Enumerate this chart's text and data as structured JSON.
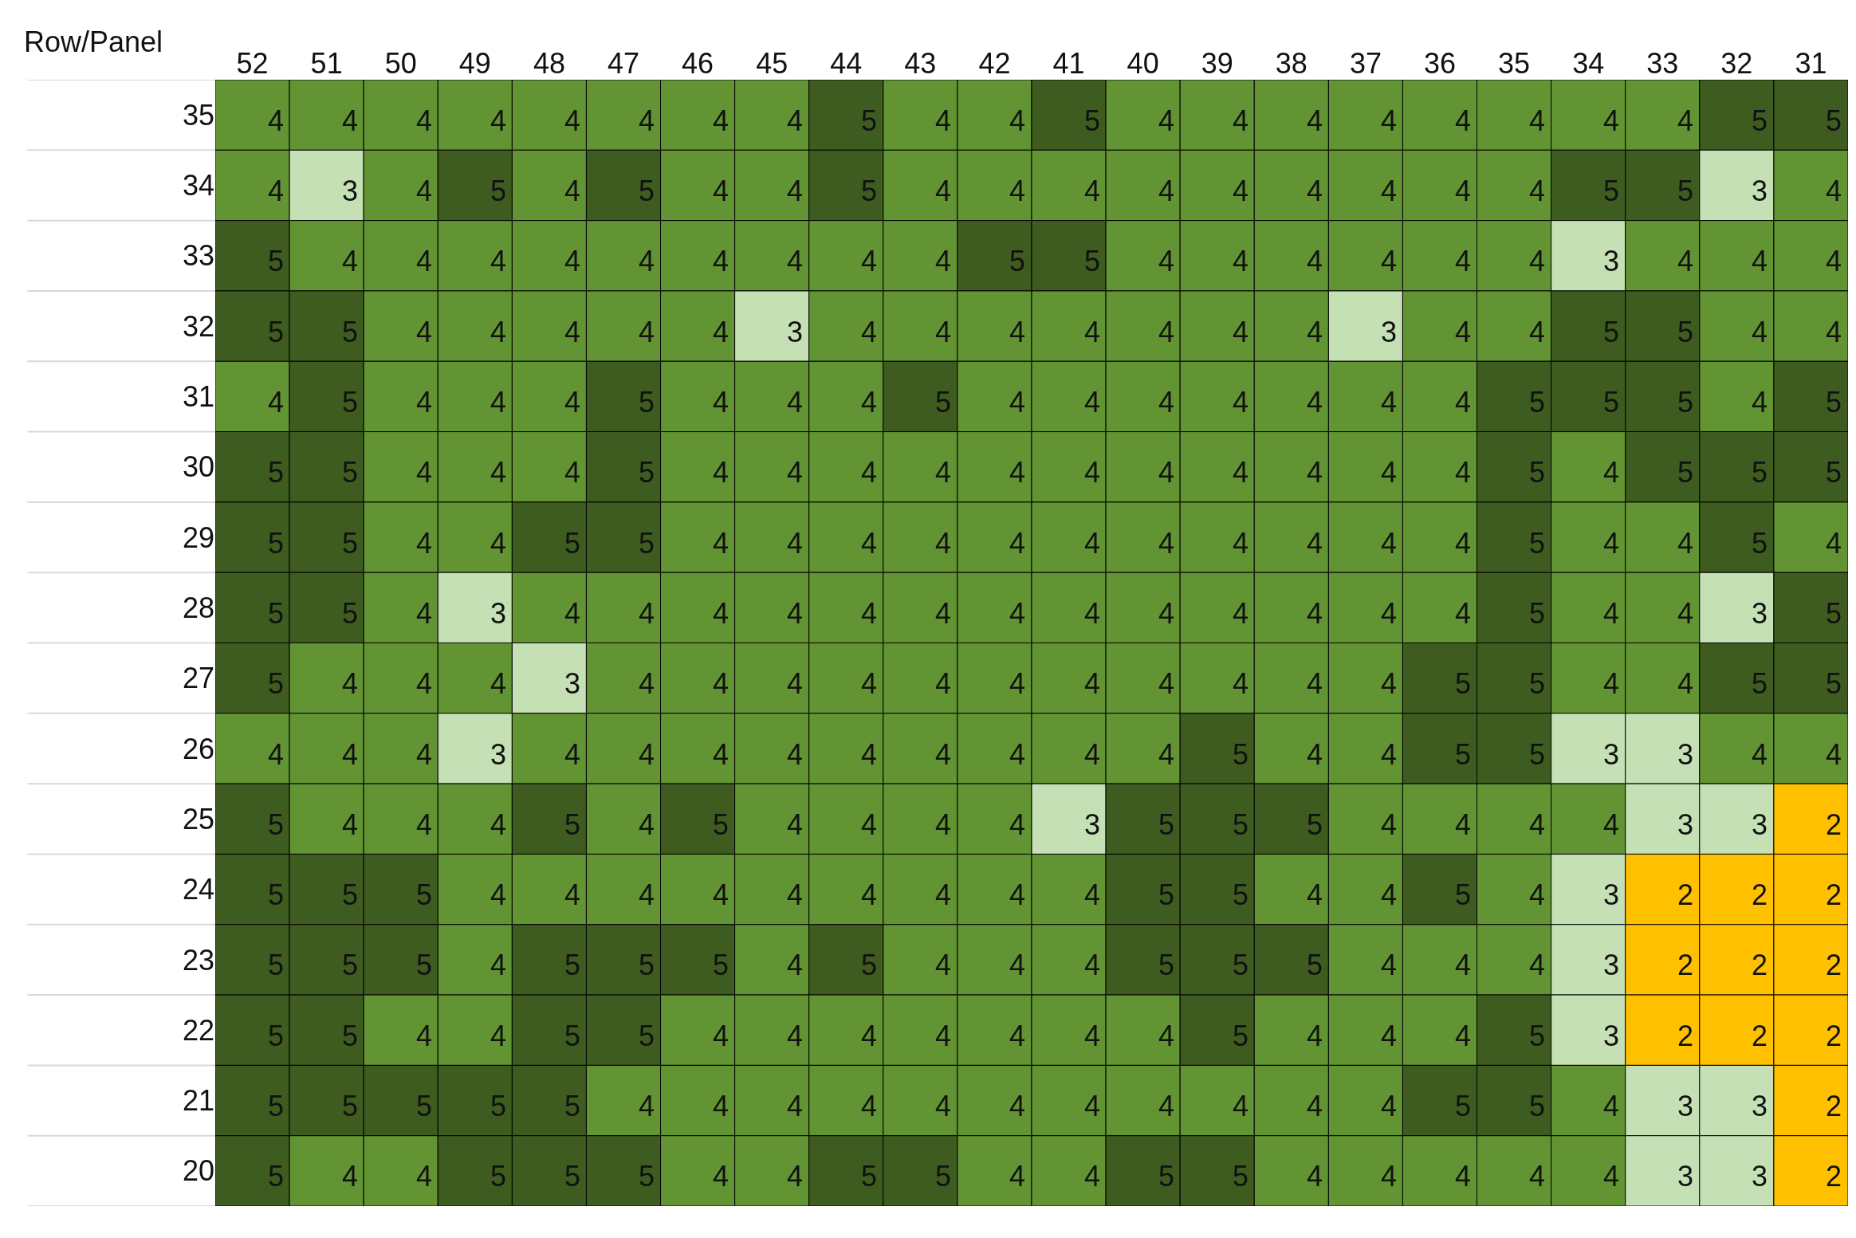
{
  "chart_data": {
    "type": "heatmap",
    "xlabel": "Row/Panel",
    "categories": [
      "52",
      "51",
      "50",
      "49",
      "48",
      "47",
      "46",
      "45",
      "44",
      "43",
      "42",
      "41",
      "40",
      "39",
      "38",
      "37",
      "36",
      "35",
      "34",
      "33",
      "32",
      "31"
    ],
    "y_categories": [
      "35",
      "34",
      "33",
      "32",
      "31",
      "30",
      "29",
      "28",
      "27",
      "26",
      "25",
      "24",
      "23",
      "22",
      "21",
      "20"
    ],
    "colors": [
      "#ffc000",
      "#c5e0b4",
      "#629433",
      "#3e5c1f"
    ],
    "data_labels": true,
    "cells": [
      [
        4,
        4,
        4,
        4,
        4,
        4,
        4,
        4,
        5,
        4,
        4,
        5,
        4,
        4,
        4,
        4,
        4,
        4,
        4,
        4,
        5,
        5
      ],
      [
        4,
        3,
        4,
        5,
        4,
        5,
        4,
        4,
        5,
        4,
        4,
        4,
        4,
        4,
        4,
        4,
        4,
        4,
        5,
        5,
        3,
        4
      ],
      [
        5,
        4,
        4,
        4,
        4,
        4,
        4,
        4,
        4,
        4,
        5,
        5,
        4,
        4,
        4,
        4,
        4,
        4,
        3,
        4,
        4,
        4
      ],
      [
        5,
        5,
        4,
        4,
        4,
        4,
        4,
        3,
        4,
        4,
        4,
        4,
        4,
        4,
        4,
        3,
        4,
        4,
        5,
        5,
        4,
        4
      ],
      [
        4,
        5,
        4,
        4,
        4,
        5,
        4,
        4,
        4,
        5,
        4,
        4,
        4,
        4,
        4,
        4,
        4,
        5,
        5,
        5,
        4,
        5
      ],
      [
        5,
        5,
        4,
        4,
        4,
        5,
        4,
        4,
        4,
        4,
        4,
        4,
        4,
        4,
        4,
        4,
        4,
        5,
        4,
        5,
        5,
        5
      ],
      [
        5,
        5,
        4,
        4,
        5,
        5,
        4,
        4,
        4,
        4,
        4,
        4,
        4,
        4,
        4,
        4,
        4,
        5,
        4,
        4,
        5,
        4
      ],
      [
        5,
        5,
        4,
        3,
        4,
        4,
        4,
        4,
        4,
        4,
        4,
        4,
        4,
        4,
        4,
        4,
        4,
        5,
        4,
        4,
        3,
        5
      ],
      [
        5,
        4,
        4,
        4,
        3,
        4,
        4,
        4,
        4,
        4,
        4,
        4,
        4,
        4,
        4,
        4,
        5,
        5,
        4,
        4,
        5,
        5
      ],
      [
        4,
        4,
        4,
        3,
        4,
        4,
        4,
        4,
        4,
        4,
        4,
        4,
        4,
        5,
        4,
        4,
        5,
        5,
        3,
        3,
        4,
        4
      ],
      [
        5,
        4,
        4,
        4,
        5,
        4,
        5,
        4,
        4,
        4,
        4,
        3,
        5,
        5,
        5,
        4,
        4,
        4,
        4,
        3,
        3,
        2
      ],
      [
        5,
        5,
        5,
        4,
        4,
        4,
        4,
        4,
        4,
        4,
        4,
        4,
        5,
        5,
        4,
        4,
        5,
        4,
        3,
        2,
        2,
        2
      ],
      [
        5,
        5,
        5,
        4,
        5,
        5,
        5,
        4,
        5,
        4,
        4,
        4,
        5,
        5,
        5,
        4,
        4,
        4,
        3,
        2,
        2,
        2
      ],
      [
        5,
        5,
        4,
        4,
        5,
        5,
        4,
        4,
        4,
        4,
        4,
        4,
        4,
        5,
        4,
        4,
        4,
        5,
        3,
        2,
        2,
        2
      ],
      [
        5,
        5,
        5,
        5,
        5,
        4,
        4,
        4,
        4,
        4,
        4,
        4,
        4,
        4,
        4,
        4,
        5,
        5,
        4,
        3,
        3,
        2
      ],
      [
        5,
        4,
        4,
        5,
        5,
        5,
        4,
        4,
        5,
        5,
        4,
        4,
        5,
        5,
        4,
        4,
        4,
        4,
        4,
        3,
        3,
        2
      ]
    ]
  }
}
